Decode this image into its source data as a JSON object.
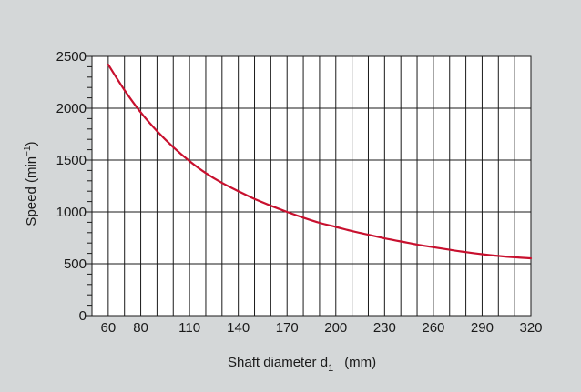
{
  "chart_data": {
    "type": "line",
    "xlabel": {
      "main": "Shaft diameter  d",
      "sub": "1",
      "unit": "(mm)"
    },
    "ylabel": {
      "main": "Speed  (min",
      "sup": "−1",
      "close": ")"
    },
    "xlim": [
      50,
      320
    ],
    "ylim": [
      0,
      2500
    ],
    "x_ticks": [
      60,
      80,
      110,
      140,
      170,
      200,
      230,
      260,
      290,
      320
    ],
    "y_ticks": [
      0,
      500,
      1000,
      1500,
      2000,
      2500
    ],
    "x_grid_step": 10,
    "y_grid_step": 500,
    "y_minor_step": 100,
    "grid": true,
    "series": [
      {
        "color": "#c8102e",
        "x": [
          60,
          70,
          80,
          90,
          100,
          110,
          120,
          130,
          140,
          150,
          160,
          170,
          180,
          190,
          200,
          210,
          220,
          230,
          240,
          250,
          260,
          270,
          280,
          290,
          300,
          310,
          320
        ],
        "y": [
          2420,
          2175,
          1960,
          1780,
          1625,
          1490,
          1375,
          1280,
          1200,
          1125,
          1060,
          1000,
          945,
          895,
          855,
          815,
          780,
          745,
          715,
          685,
          660,
          635,
          612,
          592,
          575,
          562,
          553
        ]
      }
    ]
  }
}
